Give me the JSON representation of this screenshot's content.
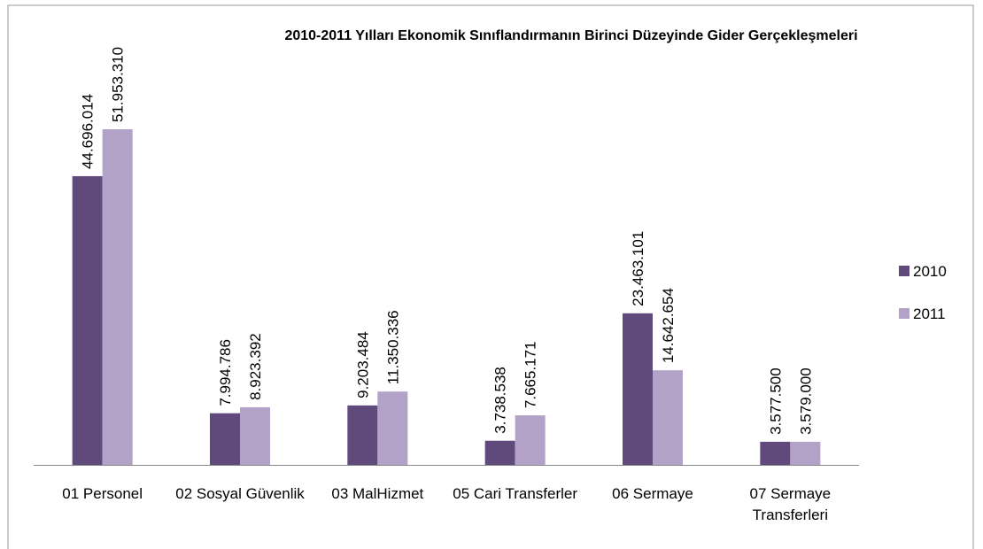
{
  "chart_data": {
    "type": "bar",
    "title": "2010-2011 Yılları Ekonomik Sınıflandırmanın Birinci Düzeyinde Gider Gerçekleşmeleri",
    "categories": [
      "01 Personel",
      "02 Sosyal Güvenlik",
      "03 MalHizmet",
      "05 Cari Transferler",
      "06 Sermaye",
      "07 Sermaye Transferleri"
    ],
    "series": [
      {
        "name": "2010",
        "color": "#604a7b",
        "values": [
          44696014,
          7994786,
          9203484,
          3738538,
          23463101,
          3577500
        ],
        "value_labels": [
          "44.696.014",
          "7.994.786",
          "9.203.484",
          "3.738.538",
          "23.463.101",
          "3.577.500"
        ]
      },
      {
        "name": "2011",
        "color": "#b3a2c7",
        "values": [
          51953310,
          8923392,
          11350336,
          7665171,
          14642654,
          3579000
        ],
        "value_labels": [
          "51.953.310",
          "8.923.392",
          "11.350.336",
          "7.665.171",
          "14.642.654",
          "3.579.000"
        ]
      }
    ],
    "legend": "right"
  }
}
